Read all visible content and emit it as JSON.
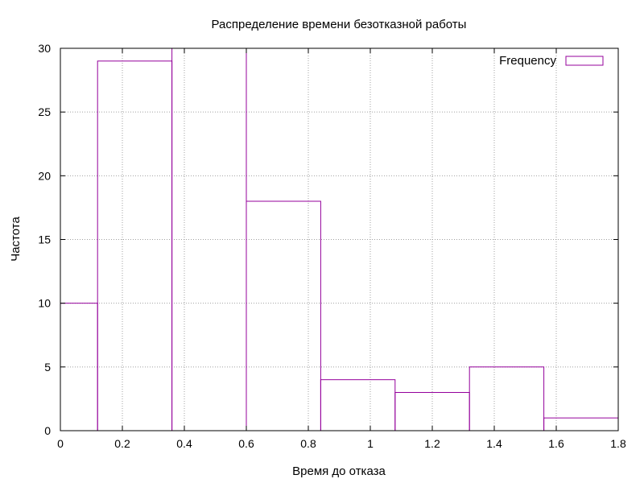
{
  "chart_data": {
    "type": "bar",
    "title": "Распределение времени безотказной работы",
    "xlabel": "Время до отказа",
    "ylabel": "Частота",
    "xlim": [
      0,
      1.8
    ],
    "ylim": [
      0,
      30
    ],
    "xticks": [
      0,
      0.2,
      0.4,
      0.6,
      0.8,
      1,
      1.2,
      1.4,
      1.6,
      1.8
    ],
    "xtick_labels": [
      "0",
      "0.2",
      "0.4",
      "0.6",
      "0.8",
      "1",
      "1.2",
      "1.4",
      "1.6",
      "1.8"
    ],
    "yticks": [
      0,
      5,
      10,
      15,
      20,
      25,
      30
    ],
    "ytick_labels": [
      "0",
      "5",
      "10",
      "15",
      "20",
      "25",
      "30"
    ],
    "grid": true,
    "legend_position": "top-right",
    "series": [
      {
        "name": "Frequency",
        "color": "#94009b",
        "bin_edges": [
          0,
          0.12,
          0.36,
          0.6,
          0.84,
          1.08,
          1.32,
          1.56,
          1.8
        ],
        "values": [
          10,
          29,
          33,
          18,
          4,
          3,
          5,
          1
        ]
      }
    ]
  }
}
